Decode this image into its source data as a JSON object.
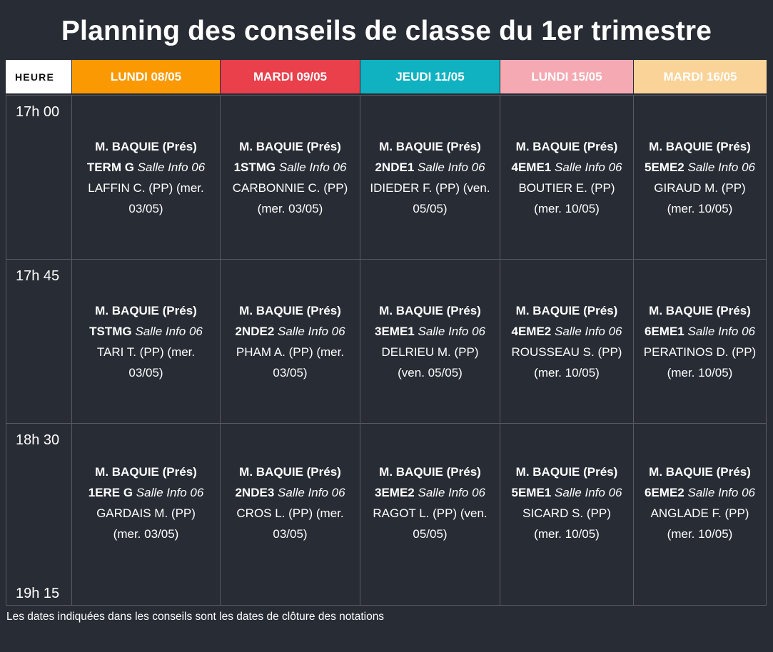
{
  "title": "Planning des conseils de classe du 1er trimestre",
  "footnote": "Les dates indiquées dans les conseils sont les dates de clôture des notations",
  "table": {
    "columns": [
      {
        "label": "HEURE",
        "bg": "#FFFFFF",
        "fg": "#111111"
      },
      {
        "label": "LUNDI 08/05",
        "bg": "#FB9902",
        "fg": "#FFFFFF"
      },
      {
        "label": "MARDI 09/05",
        "bg": "#E9404B",
        "fg": "#FFFFFF"
      },
      {
        "label": "JEUDI 11/05",
        "bg": "#10B2C1",
        "fg": "#FFFFFF"
      },
      {
        "label": "LUNDI 15/05",
        "bg": "#F5A9B2",
        "fg": "#FFFFFF"
      },
      {
        "label": "MARDI 16/05",
        "bg": "#FAD399",
        "fg": "#FFFFFF"
      }
    ],
    "rows": [
      {
        "time": "17h 00",
        "cells": [
          {
            "title": "M. BAQUIE (Prés) TERM G",
            "room": "Salle Info 06",
            "teacher": "LAFFIN C. (PP) (mer. 03/05)"
          },
          {
            "title": "M. BAQUIE (Prés) 1STMG",
            "room": "Salle Info 06",
            "teacher": "CARBONNIE C. (PP) (mer. 03/05)"
          },
          {
            "title": "M. BAQUIE (Prés) 2NDE1",
            "room": "Salle Info 06",
            "teacher": "IDIEDER F. (PP) (ven. 05/05)"
          },
          {
            "title": "M. BAQUIE (Prés) 4EME1",
            "room": "Salle Info 06",
            "teacher": "BOUTIER E. (PP) (mer. 10/05)"
          },
          {
            "title": "M. BAQUIE (Prés) 5EME2",
            "room": "Salle Info 06",
            "teacher": "GIRAUD M. (PP) (mer. 10/05)"
          }
        ]
      },
      {
        "time": "17h 45",
        "cells": [
          {
            "title": "M. BAQUIE (Prés) TSTMG",
            "room": "Salle Info 06",
            "teacher": "TARI T. (PP) (mer. 03/05)"
          },
          {
            "title": "M. BAQUIE (Prés) 2NDE2",
            "room": "Salle Info 06",
            "teacher": "PHAM A. (PP) (mer. 03/05)"
          },
          {
            "title": "M. BAQUIE (Prés) 3EME1",
            "room": "Salle Info 06",
            "teacher": "DELRIEU M. (PP) (ven. 05/05)"
          },
          {
            "title": "M. BAQUIE (Prés) 4EME2",
            "room": "Salle Info 06",
            "teacher": "ROUSSEAU S. (PP) (mer. 10/05)"
          },
          {
            "title": "M. BAQUIE (Prés) 6EME1",
            "room": "Salle Info 06",
            "teacher": "PERATINOS D. (PP) (mer. 10/05)"
          }
        ]
      },
      {
        "time": "18h 30",
        "cells": [
          {
            "title": "M. BAQUIE (Prés) 1ERE G",
            "room": "Salle Info 06",
            "teacher": "GARDAIS M. (PP) (mer. 03/05)"
          },
          {
            "title": "M. BAQUIE (Prés) 2NDE3",
            "room": "Salle Info 06",
            "teacher": "CROS L. (PP) (mer. 03/05)"
          },
          {
            "title": "M. BAQUIE (Prés) 3EME2",
            "room": "Salle Info 06",
            "teacher": "RAGOT L. (PP) (ven. 05/05)"
          },
          {
            "title": "M. BAQUIE (Prés) 5EME1",
            "room": "Salle Info 06",
            "teacher": "SICARD S. (PP) (mer. 10/05)"
          },
          {
            "title": "M. BAQUIE (Prés) 6EME2",
            "room": "Salle Info 06",
            "teacher": "ANGLADE F. (PP) (mer. 10/05)"
          }
        ]
      },
      {
        "time": "19h 15",
        "cells": [
          null,
          null,
          null,
          null,
          null
        ]
      }
    ]
  }
}
